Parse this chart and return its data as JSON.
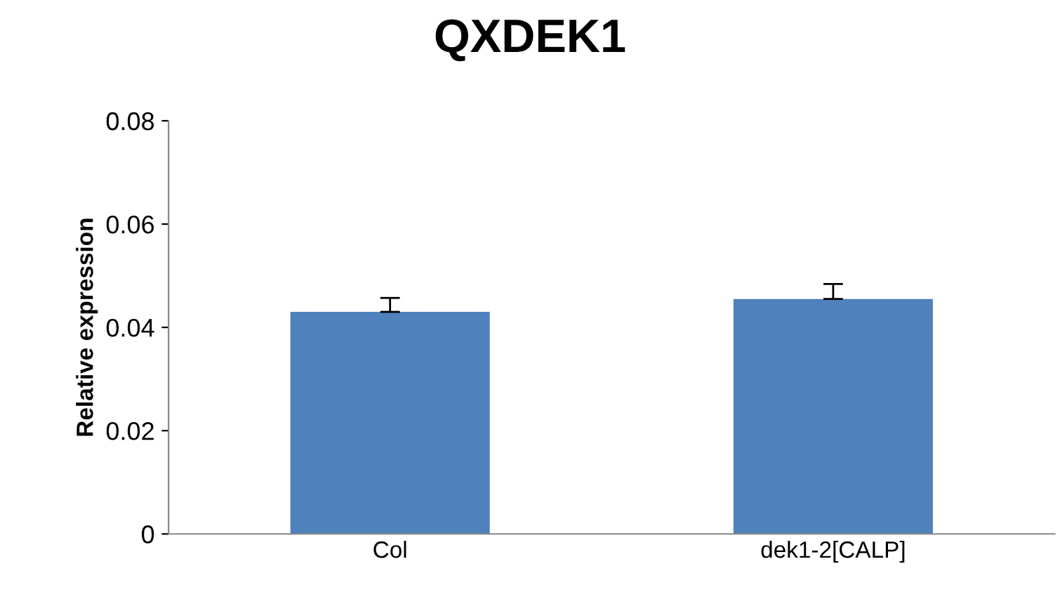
{
  "chart_data": {
    "type": "bar",
    "title": "QXDEK1",
    "ylabel": "Relative expression",
    "categories": [
      "Col",
      "dek1-2[CALP]"
    ],
    "values": [
      0.043,
      0.0455
    ],
    "errors": [
      [
        0.043,
        0.0457
      ],
      [
        0.0455,
        0.0484
      ]
    ],
    "color": "#4f81bd",
    "ylim": [
      0,
      0.08
    ],
    "yticks": [
      0,
      {
        "value": 0.02,
        "label": "0.02"
      },
      {
        "value": 0.04,
        "label": "0.04"
      },
      {
        "value": 0.06,
        "label": "0.06"
      },
      {
        "value": 0.08,
        "label": "0.08"
      }
    ],
    "grid": false
  }
}
